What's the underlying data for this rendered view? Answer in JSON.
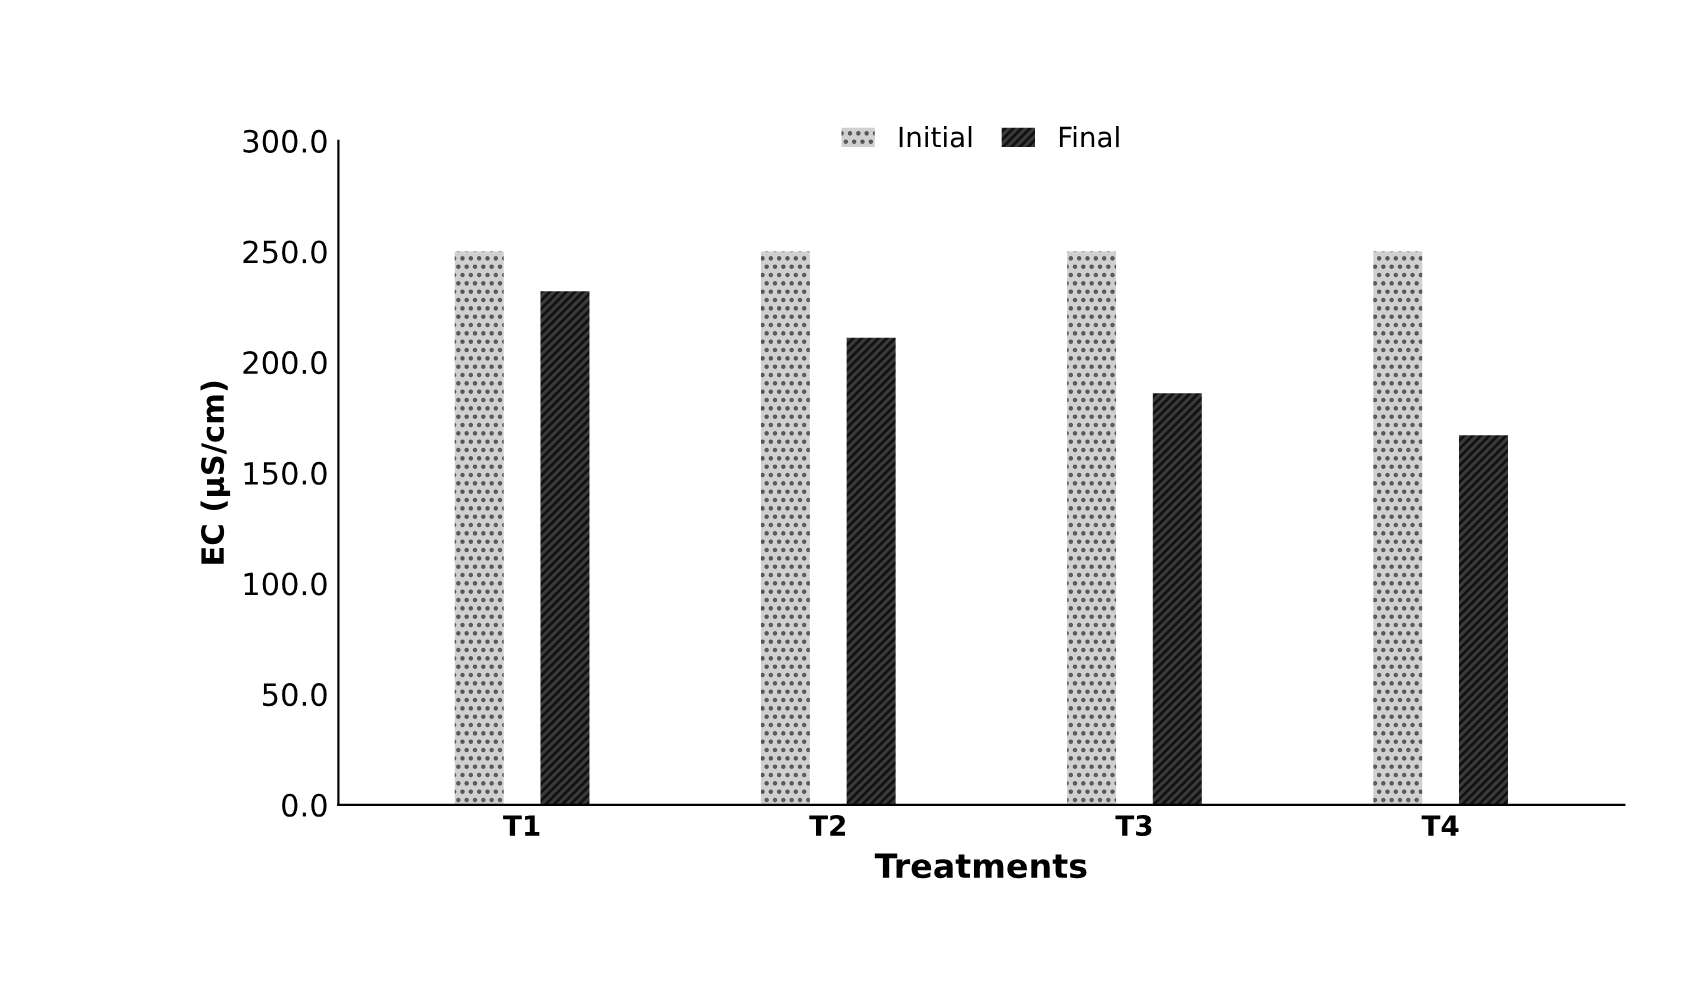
{
  "chart_data": {
    "type": "bar",
    "xlabel": "Treatments",
    "ylabel": "EC (µS/cm)",
    "categories": [
      "T1",
      "T2",
      "T3",
      "T4"
    ],
    "series": [
      {
        "name": "Initial",
        "color": "#d0d0d0",
        "values": [
          250,
          250,
          250,
          250
        ]
      },
      {
        "name": "Final",
        "color": "#3a3a3a",
        "values": [
          232,
          211,
          186,
          167
        ]
      }
    ],
    "ylim": [
      0,
      300
    ],
    "yticks": [
      {
        "value": 0,
        "label": "0.0"
      },
      {
        "value": 50,
        "label": "50.0"
      },
      {
        "value": 100,
        "label": "100.0"
      },
      {
        "value": 150,
        "label": "150.0"
      },
      {
        "value": 200,
        "label": "200.0"
      },
      {
        "value": 250,
        "label": "250.0"
      },
      {
        "value": 300,
        "label": "300.0"
      }
    ],
    "grid": false,
    "legend": "top"
  }
}
